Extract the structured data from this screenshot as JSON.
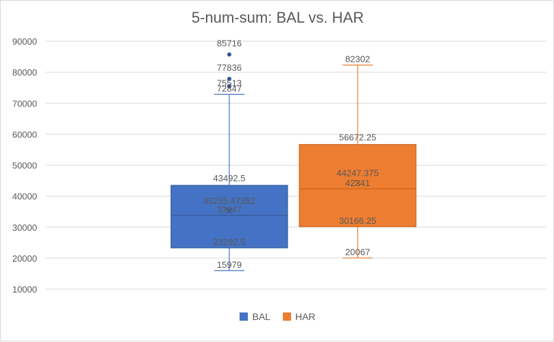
{
  "chart_data": {
    "type": "box",
    "title": "5-num-sum: BAL vs. HAR",
    "ylim": [
      10000,
      90000
    ],
    "y_ticks": [
      10000,
      20000,
      30000,
      40000,
      50000,
      60000,
      70000,
      80000,
      90000
    ],
    "grid": true,
    "legend_position": "bottom",
    "series": [
      {
        "name": "BAL",
        "color": "#4472c4",
        "min": 15979,
        "q1": 23292.5,
        "median": 33847,
        "mean": 35235.47352,
        "q3": 43492.5,
        "whisker_max": 72847,
        "outliers": [
          75513,
          77836,
          85716
        ],
        "labels": {
          "min": "15979",
          "q1": "23292.5",
          "median": "33847",
          "mean": "35235.47352",
          "q3": "43492.5",
          "whisker_max": "72847",
          "outliers": [
            "75513",
            "77836",
            "85716"
          ]
        }
      },
      {
        "name": "HAR",
        "color": "#ed7d31",
        "min": 20067,
        "q1": 30166.25,
        "median": 42341,
        "mean": 44247.375,
        "q3": 56672.25,
        "whisker_max": 82302,
        "outliers": [],
        "labels": {
          "min": "20067",
          "q1": "30166.25",
          "median": "42341",
          "mean": "44247.375",
          "q3": "56672.25",
          "whisker_max": "82302",
          "outliers": []
        }
      }
    ]
  }
}
